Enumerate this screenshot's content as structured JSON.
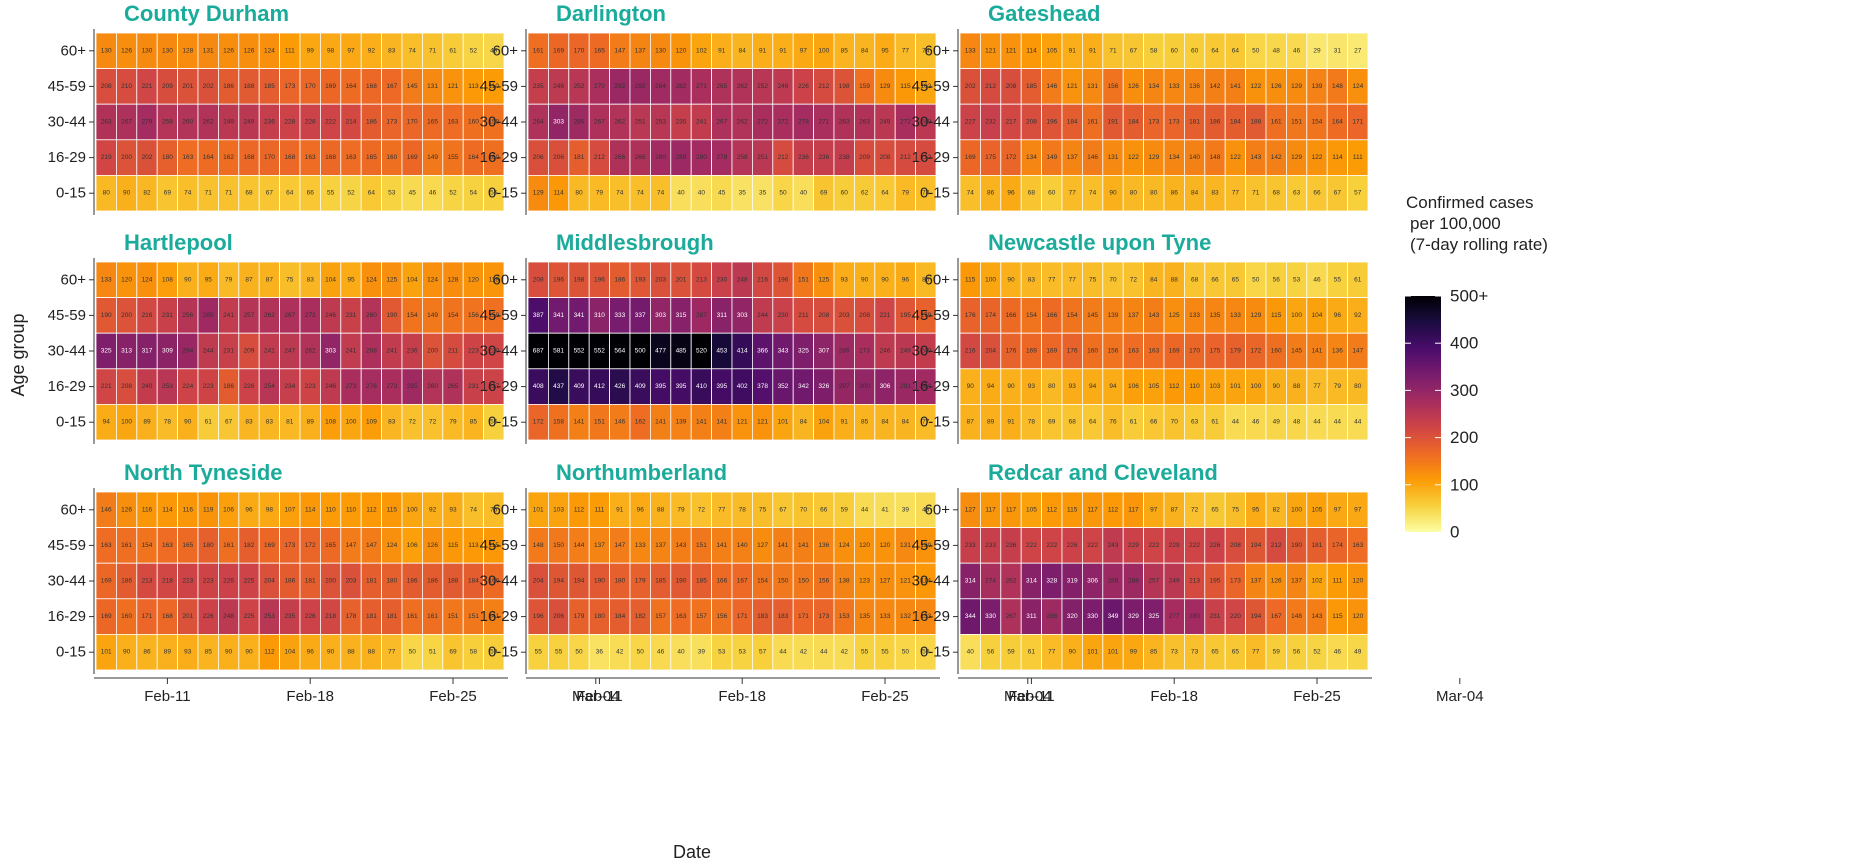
{
  "chart_data": {
    "type": "heatmap",
    "xlabel": "Date",
    "ylabel": "Age group",
    "age_groups": [
      "60+",
      "45-59",
      "30-44",
      "16-29",
      "0-15"
    ],
    "x_ticks": [
      "Feb-11",
      "Feb-18",
      "Feb-25",
      "Mar-04"
    ],
    "n_days": 20,
    "legend": {
      "title_lines": [
        "Confirmed cases",
        "per 100,000",
        "(7-day rolling rate)"
      ],
      "ticks": [
        "500+",
        "400",
        "300",
        "200",
        "100",
        "0"
      ],
      "tick_values": [
        500,
        400,
        300,
        200,
        100,
        0
      ],
      "min": 0,
      "max": 500
    },
    "colorscale": [
      "#000004",
      "#1b0c41",
      "#4a0c6b",
      "#781c6d",
      "#a52c60",
      "#cf4446",
      "#ed6925",
      "#fb9b06",
      "#f7d13d",
      "#fcffa4"
    ],
    "panels": [
      {
        "name": "County Durham",
        "rows": [
          [
            130,
            126,
            130,
            130,
            128,
            131,
            126,
            126,
            124,
            111,
            99,
            98,
            97,
            92,
            83,
            74,
            71,
            61,
            52,
            49
          ],
          [
            208,
            210,
            221,
            209,
            201,
            202,
            186,
            188,
            185,
            173,
            170,
            169,
            164,
            168,
            167,
            145,
            131,
            121,
            113,
            110
          ],
          [
            263,
            267,
            279,
            258,
            260,
            262,
            249,
            249,
            236,
            228,
            228,
            222,
            214,
            186,
            173,
            170,
            165,
            163,
            160,
            158
          ],
          [
            219,
            200,
            202,
            180,
            163,
            164,
            162,
            168,
            170,
            168,
            163,
            168,
            163,
            165,
            160,
            169,
            149,
            155,
            164,
            160
          ],
          [
            80,
            90,
            82,
            69,
            74,
            71,
            71,
            68,
            67,
            64,
            66,
            55,
            52,
            64,
            53,
            45,
            46,
            52,
            54,
            56
          ]
        ]
      },
      {
        "name": "Darlington",
        "rows": [
          [
            161,
            169,
            170,
            165,
            147,
            137,
            130,
            120,
            102,
            91,
            84,
            91,
            91,
            97,
            100,
            85,
            84,
            95,
            77,
            74
          ],
          [
            235,
            246,
            252,
            270,
            292,
            292,
            284,
            282,
            271,
            265,
            262,
            252,
            246,
            226,
            212,
            198,
            159,
            129,
            115,
            102
          ],
          [
            264,
            303,
            286,
            267,
            262,
            251,
            253,
            235,
            241,
            267,
            262,
            272,
            272,
            278,
            271,
            263,
            263,
            249,
            272,
            249
          ],
          [
            206,
            206,
            181,
            212,
            266,
            266,
            280,
            289,
            280,
            278,
            258,
            251,
            212,
            236,
            236,
            238,
            209,
            208,
            212,
            212
          ],
          [
            129,
            114,
            80,
            79,
            74,
            74,
            74,
            40,
            40,
            45,
            35,
            35,
            50,
            40,
            69,
            60,
            62,
            64,
            79,
            74
          ]
        ]
      },
      {
        "name": "Gateshead",
        "rows": [
          [
            133,
            121,
            121,
            114,
            105,
            91,
            91,
            71,
            67,
            58,
            60,
            60,
            64,
            64,
            50,
            48,
            46,
            29,
            31,
            27
          ],
          [
            202,
            212,
            208,
            185,
            146,
            121,
            131,
            156,
            126,
            134,
            133,
            136,
            142,
            141,
            122,
            126,
            129,
            139,
            148,
            124
          ],
          [
            227,
            232,
            217,
            208,
            196,
            184,
            161,
            191,
            184,
            173,
            173,
            181,
            186,
            184,
            188,
            161,
            151,
            154,
            164,
            171
          ],
          [
            169,
            175,
            172,
            134,
            149,
            137,
            146,
            131,
            122,
            129,
            134,
            140,
            148,
            122,
            143,
            142,
            129,
            122,
            114,
            111
          ],
          [
            74,
            86,
            96,
            68,
            60,
            77,
            74,
            90,
            80,
            80,
            86,
            84,
            83,
            77,
            71,
            68,
            63,
            66,
            67,
            57
          ]
        ]
      },
      {
        "name": "Hartlepool",
        "rows": [
          [
            133,
            120,
            124,
            108,
            90,
            95,
            79,
            87,
            87,
            75,
            83,
            104,
            95,
            124,
            125,
            104,
            124,
            128,
            120,
            118
          ],
          [
            190,
            200,
            216,
            231,
            256,
            285,
            241,
            257,
            262,
            267,
            272,
            246,
            231,
            260,
            190,
            154,
            149,
            154,
            156,
            159
          ],
          [
            325,
            313,
            317,
            309,
            294,
            244,
            231,
            209,
            241,
            247,
            262,
            303,
            241,
            268,
            241,
            236,
            200,
            211,
            223,
            220
          ],
          [
            221,
            208,
            240,
            253,
            224,
            223,
            186,
            226,
            254,
            234,
            223,
            246,
            273,
            276,
            273,
            285,
            260,
            265,
            231,
            227
          ],
          [
            94,
            100,
            89,
            78,
            90,
            61,
            67,
            83,
            83,
            81,
            89,
            108,
            100,
            109,
            83,
            72,
            72,
            79,
            85,
            56
          ]
        ]
      },
      {
        "name": "Middlesbrough",
        "rows": [
          [
            208,
            196,
            198,
            196,
            186,
            193,
            203,
            201,
            213,
            230,
            248,
            216,
            196,
            151,
            125,
            93,
            90,
            90,
            96,
            80
          ],
          [
            387,
            341,
            341,
            310,
            333,
            337,
            303,
            315,
            287,
            311,
            303,
            244,
            230,
            211,
            208,
            203,
            208,
            221,
            195,
            179
          ],
          [
            687,
            581,
            552,
            552,
            564,
            500,
            477,
            485,
            520,
            453,
            414,
            366,
            343,
            325,
            307,
            286,
            273,
            246,
            249,
            240
          ],
          [
            408,
            437,
            409,
            412,
            426,
            409,
            395,
            395,
            410,
            395,
            402,
            378,
            352,
            342,
            326,
            297,
            300,
            306,
            291,
            284
          ],
          [
            172,
            158,
            141,
            151,
            146,
            162,
            141,
            139,
            141,
            141,
            121,
            121,
            101,
            84,
            104,
            91,
            85,
            84,
            84,
            77
          ]
        ]
      },
      {
        "name": "Newcastle upon Tyne",
        "rows": [
          [
            115,
            100,
            90,
            83,
            77,
            77,
            75,
            70,
            72,
            84,
            88,
            68,
            66,
            65,
            50,
            56,
            53,
            46,
            55,
            61
          ],
          [
            176,
            174,
            166,
            154,
            166,
            154,
            145,
            139,
            137,
            143,
            125,
            133,
            135,
            133,
            129,
            115,
            100,
            104,
            96,
            92
          ],
          [
            216,
            204,
            176,
            169,
            169,
            176,
            160,
            156,
            163,
            163,
            169,
            170,
            175,
            179,
            172,
            160,
            145,
            141,
            136,
            147
          ],
          [
            90,
            94,
            90,
            93,
            80,
            93,
            94,
            94,
            106,
            105,
            112,
            110,
            103,
            101,
            100,
            90,
            88,
            77,
            79,
            80
          ],
          [
            87,
            89,
            91,
            78,
            69,
            68,
            64,
            76,
            61,
            66,
            70,
            63,
            61,
            44,
            46,
            49,
            48,
            44,
            44,
            44
          ]
        ]
      },
      {
        "name": "North Tyneside",
        "rows": [
          [
            146,
            126,
            116,
            114,
            116,
            119,
            106,
            96,
            98,
            107,
            114,
            110,
            110,
            112,
            115,
            100,
            92,
            93,
            74,
            76
          ],
          [
            163,
            161,
            154,
            163,
            165,
            180,
            161,
            182,
            169,
            173,
            172,
            165,
            147,
            147,
            124,
            106,
            126,
            115,
            113,
            115
          ],
          [
            169,
            186,
            213,
            218,
            223,
            223,
            226,
            225,
            204,
            186,
            181,
            200,
            203,
            181,
            180,
            186,
            186,
            188,
            184,
            166
          ],
          [
            169,
            160,
            171,
            168,
            201,
            226,
            248,
            225,
            253,
            235,
            226,
            218,
            178,
            181,
            181,
            161,
            161,
            151,
            151,
            141
          ],
          [
            101,
            90,
            86,
            89,
            93,
            85,
            90,
            90,
            112,
            104,
            96,
            90,
            88,
            88,
            77,
            50,
            51,
            69,
            58,
            59
          ]
        ]
      },
      {
        "name": "Northumberland",
        "rows": [
          [
            101,
            103,
            112,
            111,
            91,
            96,
            88,
            79,
            72,
            77,
            78,
            75,
            67,
            70,
            66,
            59,
            44,
            41,
            39,
            43
          ],
          [
            148,
            150,
            144,
            137,
            147,
            133,
            137,
            143,
            151,
            141,
            140,
            127,
            141,
            141,
            136,
            124,
            120,
            120,
            131,
            120
          ],
          [
            204,
            194,
            194,
            190,
            180,
            179,
            185,
            190,
            185,
            166,
            167,
            154,
            150,
            150,
            156,
            138,
            123,
            127,
            121,
            114
          ],
          [
            196,
            206,
            179,
            180,
            184,
            182,
            157,
            163,
            157,
            156,
            171,
            183,
            183,
            171,
            173,
            153,
            135,
            133,
            132,
            133
          ],
          [
            55,
            55,
            50,
            36,
            42,
            50,
            46,
            40,
            39,
            53,
            53,
            57,
            44,
            42,
            44,
            42,
            55,
            55,
            50,
            50
          ]
        ]
      },
      {
        "name": "Redcar and Cleveland",
        "rows": [
          [
            127,
            117,
            117,
            105,
            112,
            115,
            117,
            112,
            117,
            97,
            87,
            72,
            65,
            75,
            95,
            82,
            100,
            105,
            97,
            97
          ],
          [
            233,
            233,
            236,
            222,
            222,
            226,
            222,
            243,
            229,
            222,
            229,
            222,
            226,
            208,
            194,
            212,
            190,
            181,
            174,
            163
          ],
          [
            314,
            274,
            262,
            314,
            328,
            319,
            306,
            288,
            288,
            257,
            249,
            213,
            195,
            173,
            137,
            126,
            137,
            102,
            111,
            120
          ],
          [
            344,
            330,
            267,
            311,
            286,
            320,
            330,
            349,
            329,
            325,
            277,
            280,
            231,
            220,
            194,
            167,
            148,
            143,
            115,
            120
          ],
          [
            40,
            56,
            59,
            61,
            77,
            90,
            101,
            101,
            99,
            85,
            73,
            73,
            65,
            65,
            77,
            59,
            56,
            52,
            46,
            49
          ]
        ]
      }
    ]
  }
}
